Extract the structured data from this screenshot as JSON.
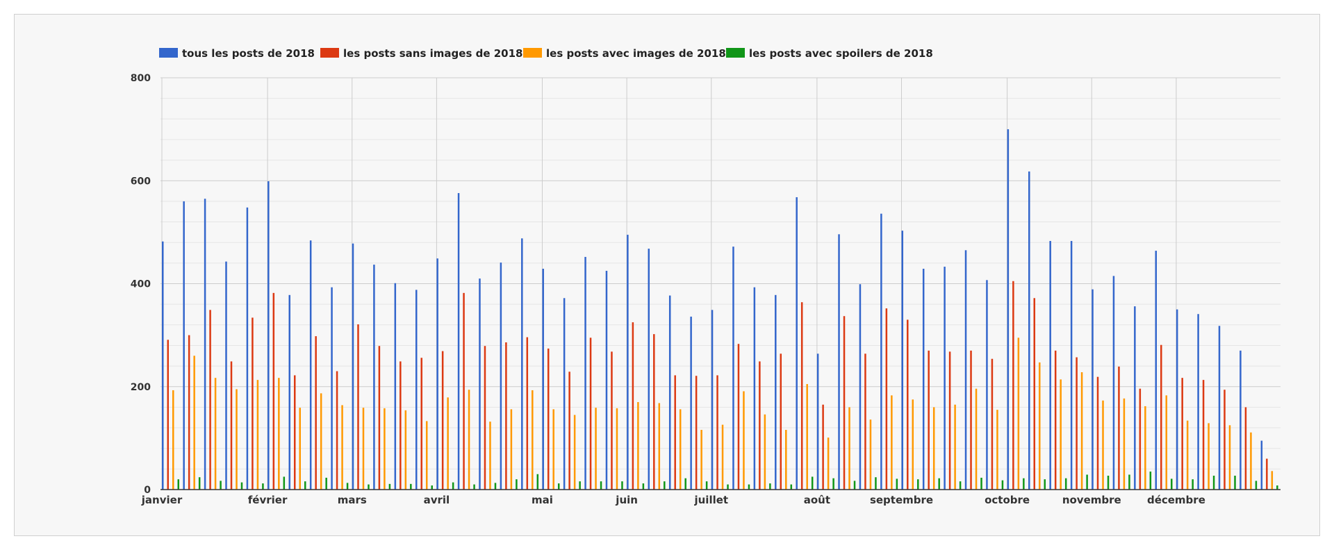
{
  "chart_data": {
    "type": "bar",
    "title": "",
    "xlabel": "",
    "ylabel": "",
    "ylim": [
      0,
      800
    ],
    "yticks": [
      0,
      200,
      400,
      600,
      800
    ],
    "grid": true,
    "legend_position": "top-left",
    "month_labels": [
      "janvier",
      "février",
      "mars",
      "avril",
      "mai",
      "juin",
      "juillet",
      "août",
      "septembre",
      "octobre",
      "novembre",
      "décembre"
    ],
    "month_start_index": [
      0,
      5,
      9,
      13,
      18,
      22,
      26,
      31,
      35,
      40,
      44,
      48
    ],
    "weeks_count": 53,
    "series": [
      {
        "name": "tous les posts de 2018",
        "color": "#3366cc",
        "values": [
          482,
          560,
          565,
          443,
          548,
          599,
          378,
          484,
          393,
          478,
          437,
          401,
          388,
          449,
          576,
          410,
          441,
          488,
          429,
          372,
          452,
          425,
          495,
          468,
          377,
          336,
          349,
          472,
          393,
          378,
          568,
          264,
          496,
          399,
          536,
          503,
          429,
          433,
          465,
          407,
          700,
          618,
          483,
          483,
          389,
          415,
          356,
          464,
          350,
          341,
          318,
          270,
          95
        ]
      },
      {
        "name": "les posts sans images de 2018",
        "color": "#dc3912",
        "values": [
          291,
          300,
          349,
          249,
          334,
          382,
          222,
          298,
          230,
          321,
          279,
          249,
          256,
          269,
          382,
          279,
          286,
          296,
          274,
          229,
          295,
          268,
          325,
          302,
          222,
          221,
          222,
          283,
          249,
          264,
          364,
          165,
          337,
          264,
          352,
          330,
          270,
          268,
          270,
          254,
          405,
          372,
          270,
          257,
          219,
          239,
          196,
          281,
          217,
          213,
          194,
          160,
          60
        ]
      },
      {
        "name": "les posts avec images de 2018",
        "color": "#ff9900",
        "values": [
          193,
          260,
          217,
          195,
          213,
          217,
          159,
          187,
          164,
          159,
          158,
          154,
          133,
          179,
          194,
          132,
          156,
          193,
          156,
          145,
          159,
          158,
          170,
          168,
          156,
          116,
          126,
          191,
          146,
          116,
          205,
          101,
          160,
          136,
          183,
          175,
          160,
          165,
          196,
          155,
          295,
          247,
          214,
          228,
          173,
          177,
          162,
          183,
          134,
          129,
          125,
          111,
          36
        ]
      },
      {
        "name": "les posts avec spoilers de 2018",
        "color": "#109618",
        "values": [
          20,
          24,
          17,
          14,
          12,
          25,
          16,
          23,
          13,
          10,
          11,
          11,
          8,
          14,
          10,
          13,
          20,
          30,
          12,
          16,
          16,
          16,
          12,
          16,
          22,
          16,
          10,
          10,
          12,
          10,
          25,
          22,
          17,
          24,
          21,
          20,
          22,
          16,
          23,
          18,
          22,
          20,
          22,
          29,
          27,
          29,
          35,
          21,
          20,
          27,
          27,
          17,
          8
        ]
      }
    ]
  }
}
